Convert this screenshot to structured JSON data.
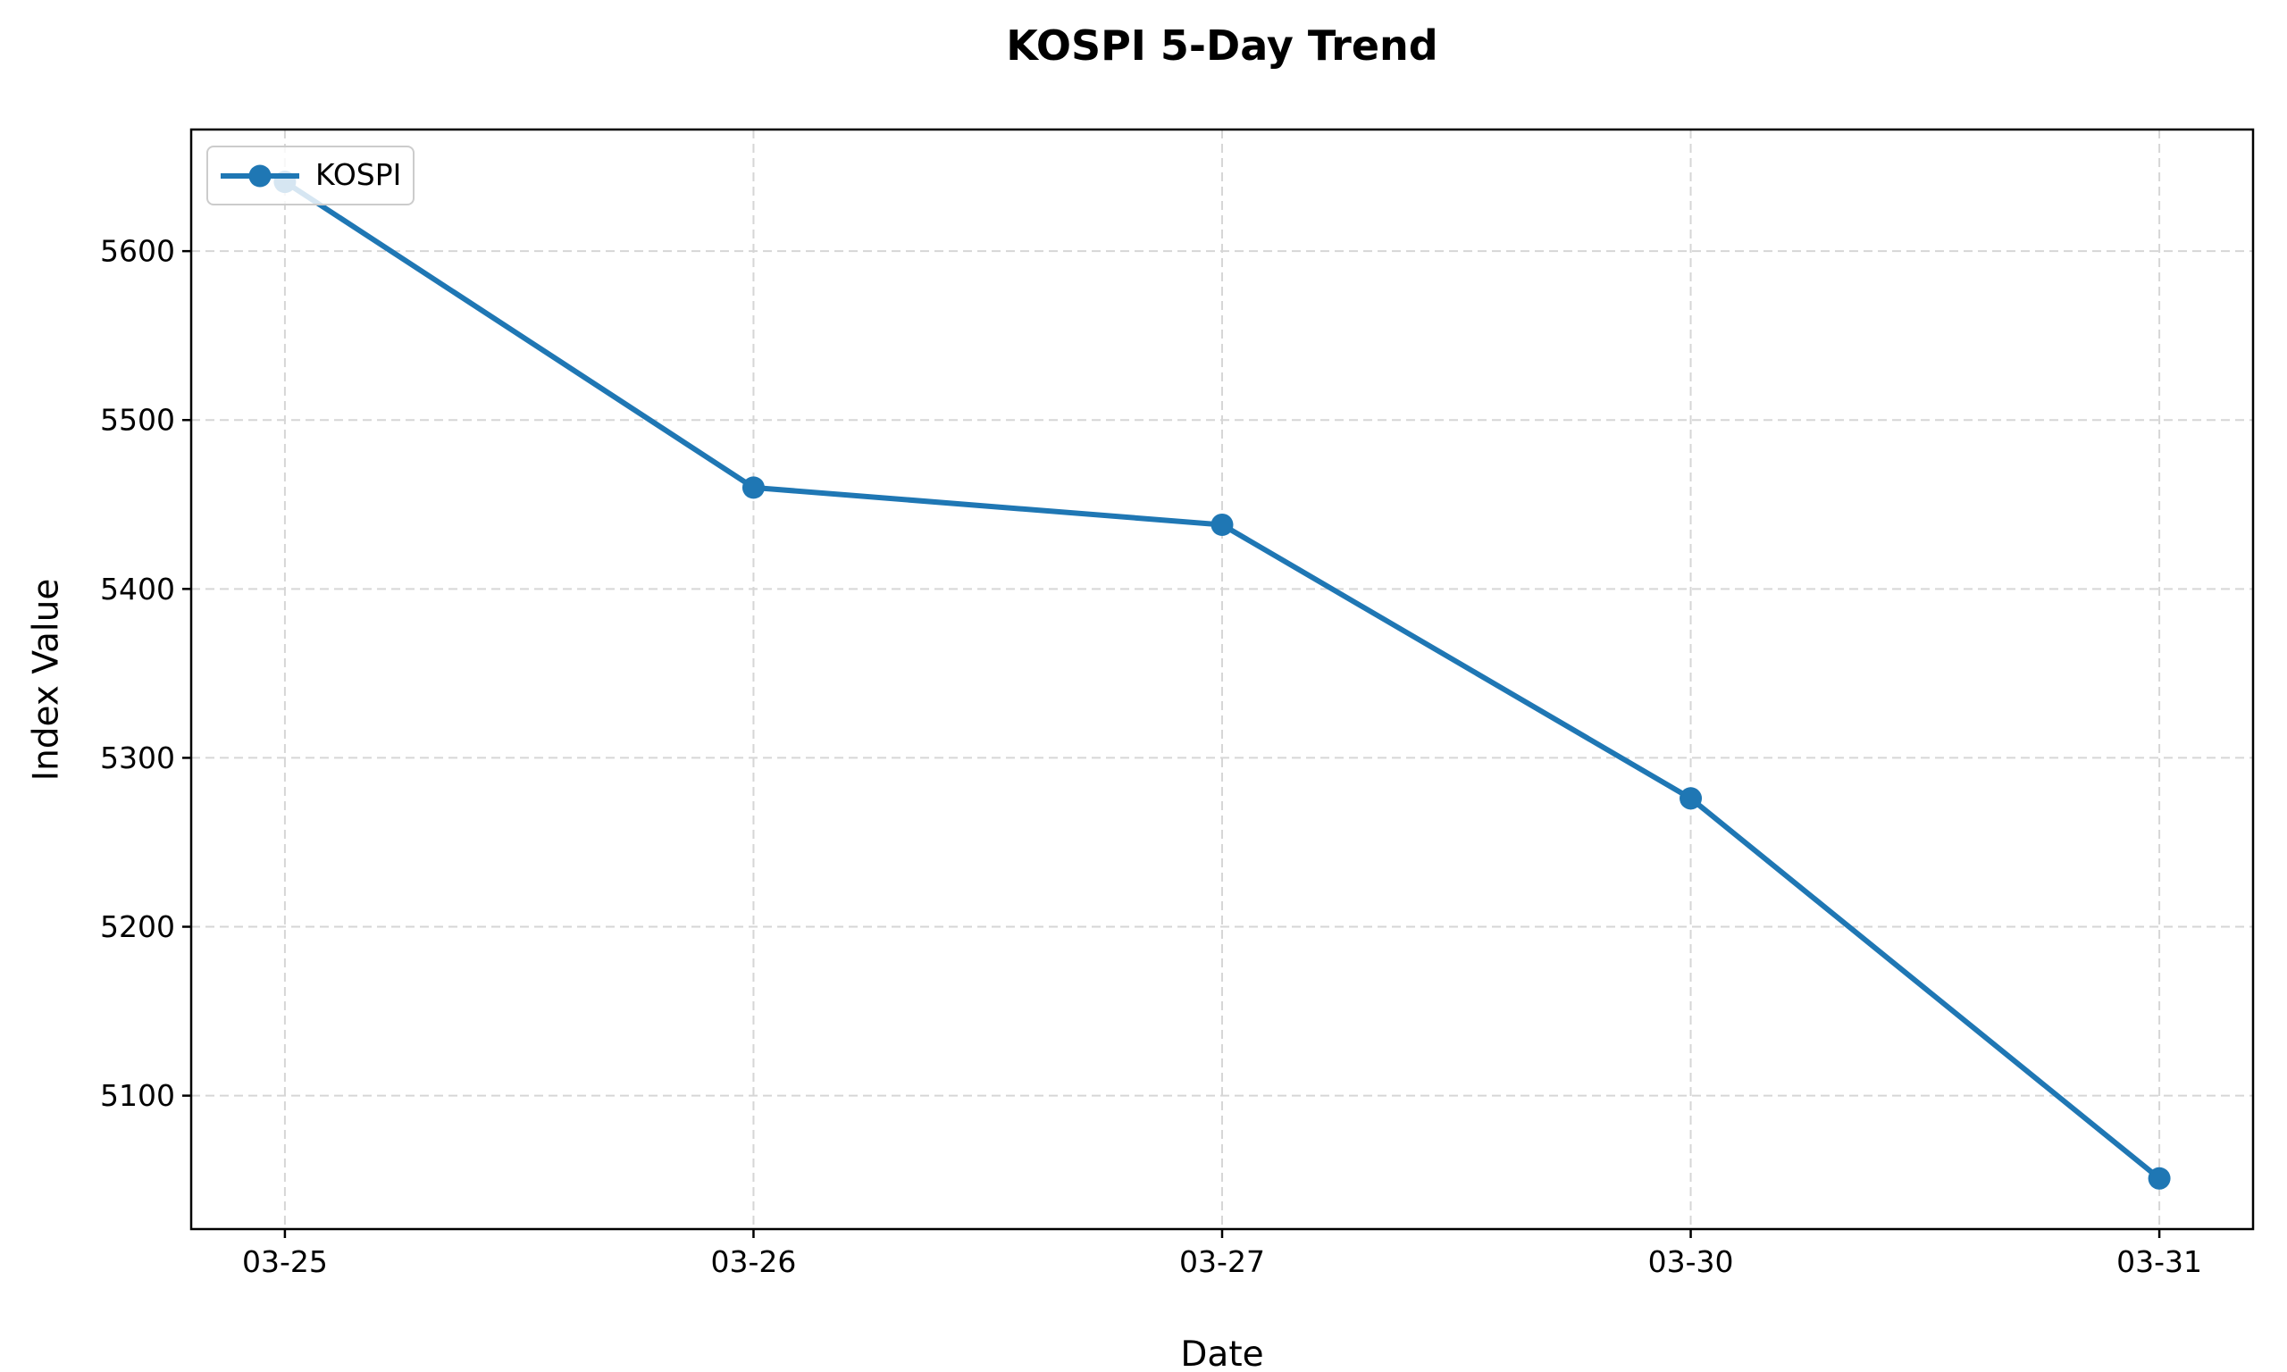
{
  "figure": {
    "background": "#ffffff"
  },
  "chart_data": {
    "type": "line",
    "title": "KOSPI 5-Day Trend",
    "xlabel": "Date",
    "ylabel": "Index Value",
    "categories": [
      "03-25",
      "03-26",
      "03-27",
      "03-30",
      "03-31"
    ],
    "series": [
      {
        "name": "KOSPI",
        "values": [
          5641,
          5460,
          5438,
          5276,
          5051
        ],
        "color": "#1f77b4",
        "marker": "circle"
      }
    ],
    "ylim": [
      5021,
      5672
    ],
    "yticks": [
      5100,
      5200,
      5300,
      5400,
      5500,
      5600
    ],
    "grid": true,
    "grid_color": "#d6d6d6",
    "grid_style": "dashed",
    "axis_color": "#000000",
    "text_color": "#000000",
    "legend_position": "upper-left"
  }
}
